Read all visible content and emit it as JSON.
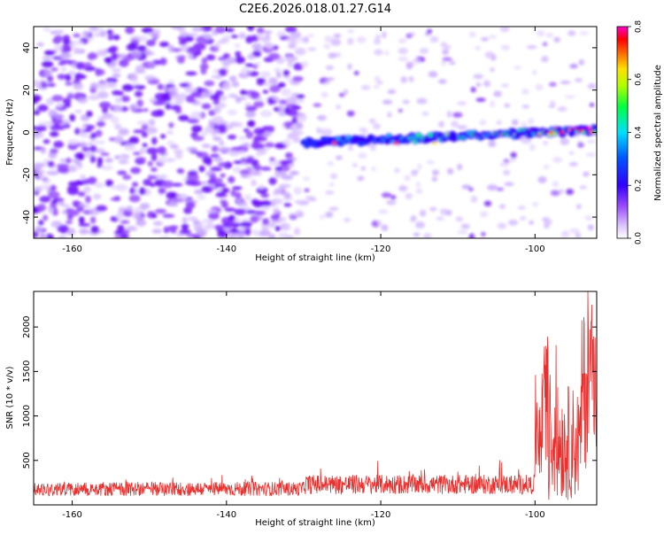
{
  "title": "C2E6.2026.018.01.27.G14",
  "chart_data": [
    {
      "type": "heatmap",
      "xlabel": "Height of straight line (km)",
      "ylabel": "Frequency (Hz)",
      "xlim": [
        -165,
        -92
      ],
      "ylim": [
        -50,
        50
      ],
      "x_ticks": [
        -160,
        -140,
        -120,
        -100
      ],
      "y_ticks": [
        -40,
        -20,
        0,
        20,
        40
      ],
      "colorbar": {
        "label": "Normalized spectral amplitude",
        "range": [
          0,
          0.8
        ],
        "ticks": [
          0,
          0.2,
          0.4,
          0.6,
          0.8
        ],
        "palette": [
          "#ffffff",
          "#c79cff",
          "#7a00ff",
          "#0000ff",
          "#00e5ff",
          "#00ff00",
          "#ffff00",
          "#ff8000",
          "#ff0000",
          "#ff00ff"
        ]
      },
      "ridge": {
        "start_km": -130,
        "end_km": -92,
        "freq_start_hz": -5,
        "freq_end_hz": 1
      }
    },
    {
      "type": "line",
      "xlabel": "Height of straight line (km)",
      "ylabel": "SNR (10 * v/v)",
      "xlim": [
        -165,
        -92
      ],
      "ylim": [
        0,
        2400
      ],
      "x_ticks": [
        -160,
        -140,
        -120,
        -100
      ],
      "y_ticks": [
        500,
        1000,
        1500,
        2000
      ],
      "series_color": "#e8302e",
      "segments": [
        {
          "x": [
            -165,
            -130
          ],
          "base": 180,
          "noise": 80
        },
        {
          "x": [
            -130,
            -100
          ],
          "base": 230,
          "noise": 110
        },
        {
          "x": [
            -100,
            -98.5
          ],
          "base": 900,
          "noise": 600
        },
        {
          "x": [
            -98.5,
            -94
          ],
          "base": 700,
          "noise": 650
        },
        {
          "x": [
            -94,
            -92
          ],
          "base": 1300,
          "noise": 900
        }
      ]
    }
  ]
}
